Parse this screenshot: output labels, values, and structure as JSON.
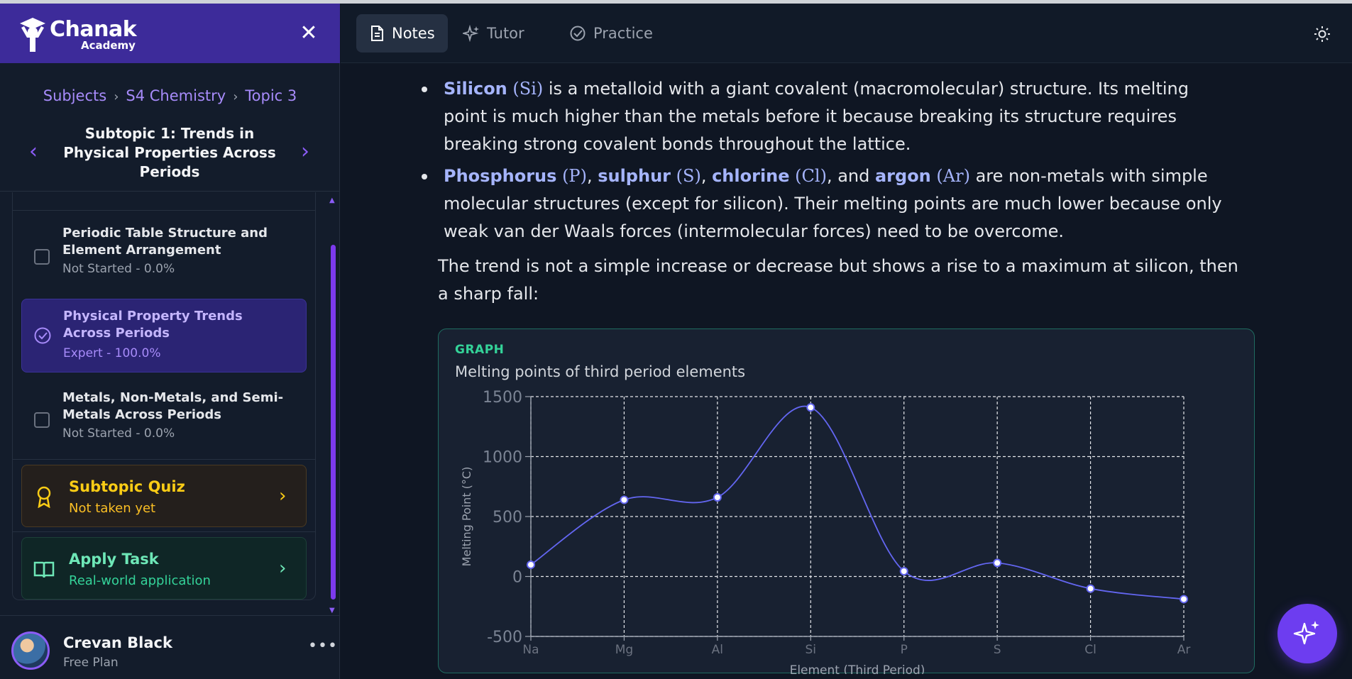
{
  "brand": {
    "name": "Chanak",
    "sub": "Academy"
  },
  "breadcrumb": {
    "items": [
      "Subjects",
      "S4 Chemistry",
      "Topic 3"
    ]
  },
  "subtopic": {
    "title": "Subtopic 1: Trends in Physical Properties Across Periods"
  },
  "lessons": [
    {
      "title": "Periodic Table Structure and Element Arrangement",
      "status": "Not Started - 0.0%"
    },
    {
      "title": "Physical Property Trends Across Periods",
      "status": "Expert - 100.0%"
    },
    {
      "title": "Metals, Non-Metals, and Semi-Metals Across Periods",
      "status": "Not Started - 0.0%"
    }
  ],
  "quiz": {
    "title": "Subtopic Quiz",
    "sub": "Not taken yet"
  },
  "apply": {
    "title": "Apply Task",
    "sub": "Real-world application"
  },
  "user": {
    "name": "Crevan Black",
    "plan": "Free Plan"
  },
  "tabs": {
    "notes": "Notes",
    "tutor": "Tutor",
    "practice": "Practice"
  },
  "content": {
    "b1_name": "Silicon",
    "b1_sym": "(Si)",
    "b1_text": " is a metalloid with a giant covalent (macromolecular) structure. Its melting point is much higher than the metals before it because breaking its structure requires breaking strong covalent bonds throughout the lattice.",
    "b2_p": "Phosphorus",
    "b2_psym": "(P)",
    "b2_s": "sulphur",
    "b2_ssym": "(S)",
    "b2_cl": "chlorine",
    "b2_clsym": "(Cl)",
    "b2_and": ", and ",
    "b2_ar": "argon",
    "b2_arsym": "(Ar)",
    "b2_text": " are non-metals with simple molecular structures (except for silicon). Their melting points are much lower because only weak van der Waals forces (intermolecular forces) need to be overcome.",
    "trend": "The trend is not a simple increase or decrease but shows a rise to a maximum at silicon, then a sharp fall:"
  },
  "graph": {
    "label": "GRAPH",
    "title": "Melting points of third period elements"
  },
  "chart_data": {
    "type": "line",
    "categories": [
      "Na",
      "Mg",
      "Al",
      "Si",
      "P",
      "S",
      "Cl",
      "Ar"
    ],
    "values": [
      98,
      639,
      660,
      1410,
      44,
      113,
      -101,
      -189
    ],
    "xlabel": "Element (Third Period)",
    "ylabel": "Melting Point (°C)",
    "ylim": [
      -500,
      1500
    ],
    "yticks": [
      -500,
      0,
      500,
      1000,
      1500
    ],
    "grid": true,
    "line_color": "#6366f1"
  },
  "colors": {
    "accent": "#6d3df0",
    "brand": "#3d2b9a",
    "graph_border": "#1f6b60"
  }
}
